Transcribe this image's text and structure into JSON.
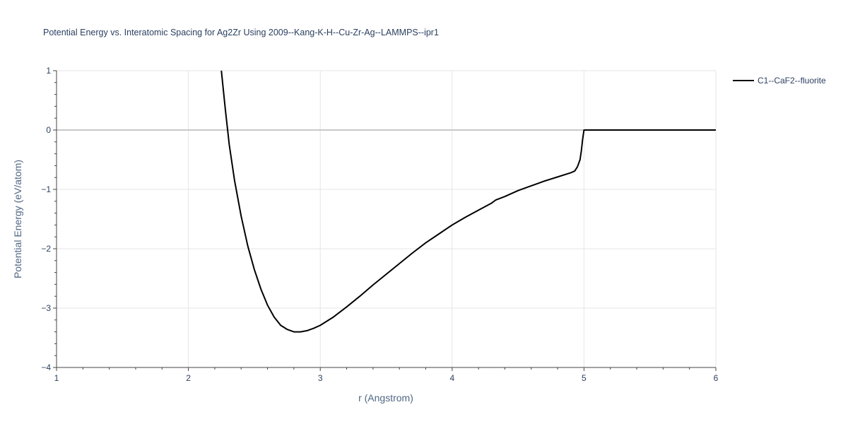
{
  "chart_data": {
    "type": "line",
    "title": "Potential Energy vs. Interatomic Spacing for Ag2Zr Using 2009--Kang-K-H--Cu-Zr-Ag--LAMMPS--ipr1",
    "xlabel": "r (Angstrom)",
    "ylabel": "Potential Energy (eV/atom)",
    "xlim": [
      1,
      6
    ],
    "ylim": [
      -4,
      1
    ],
    "xticks": [
      1,
      2,
      3,
      4,
      5,
      6
    ],
    "xtick_labels": [
      "1",
      "2",
      "3",
      "4",
      "5",
      "6"
    ],
    "yticks": [
      1,
      0,
      -1,
      -2,
      -3,
      -4
    ],
    "ytick_labels": [
      "1",
      "0",
      "−1",
      "−2",
      "−3",
      "−4"
    ],
    "grid": true,
    "legend_position": "top-right",
    "series": [
      {
        "name": "C1--CaF2--fluorite",
        "color": "#000000",
        "x": [
          2.25,
          2.28,
          2.31,
          2.35,
          2.4,
          2.45,
          2.5,
          2.55,
          2.6,
          2.65,
          2.7,
          2.75,
          2.8,
          2.85,
          2.9,
          2.95,
          3.0,
          3.1,
          3.2,
          3.3,
          3.4,
          3.5,
          3.6,
          3.7,
          3.8,
          3.9,
          4.0,
          4.1,
          4.2,
          4.3,
          4.33,
          4.4,
          4.5,
          4.6,
          4.7,
          4.8,
          4.9,
          4.93,
          4.95,
          4.97,
          4.98,
          4.99,
          5.0,
          5.2,
          5.4,
          5.6,
          5.8,
          6.0
        ],
        "y": [
          1.0,
          0.35,
          -0.25,
          -0.85,
          -1.45,
          -1.95,
          -2.35,
          -2.68,
          -2.95,
          -3.15,
          -3.29,
          -3.36,
          -3.4,
          -3.4,
          -3.38,
          -3.34,
          -3.29,
          -3.15,
          -2.98,
          -2.8,
          -2.61,
          -2.43,
          -2.25,
          -2.07,
          -1.9,
          -1.75,
          -1.6,
          -1.47,
          -1.35,
          -1.23,
          -1.18,
          -1.12,
          -1.02,
          -0.94,
          -0.86,
          -0.79,
          -0.72,
          -0.69,
          -0.62,
          -0.5,
          -0.35,
          -0.15,
          0.0,
          0.0,
          0.0,
          0.0,
          0.0,
          0.0
        ]
      }
    ]
  }
}
